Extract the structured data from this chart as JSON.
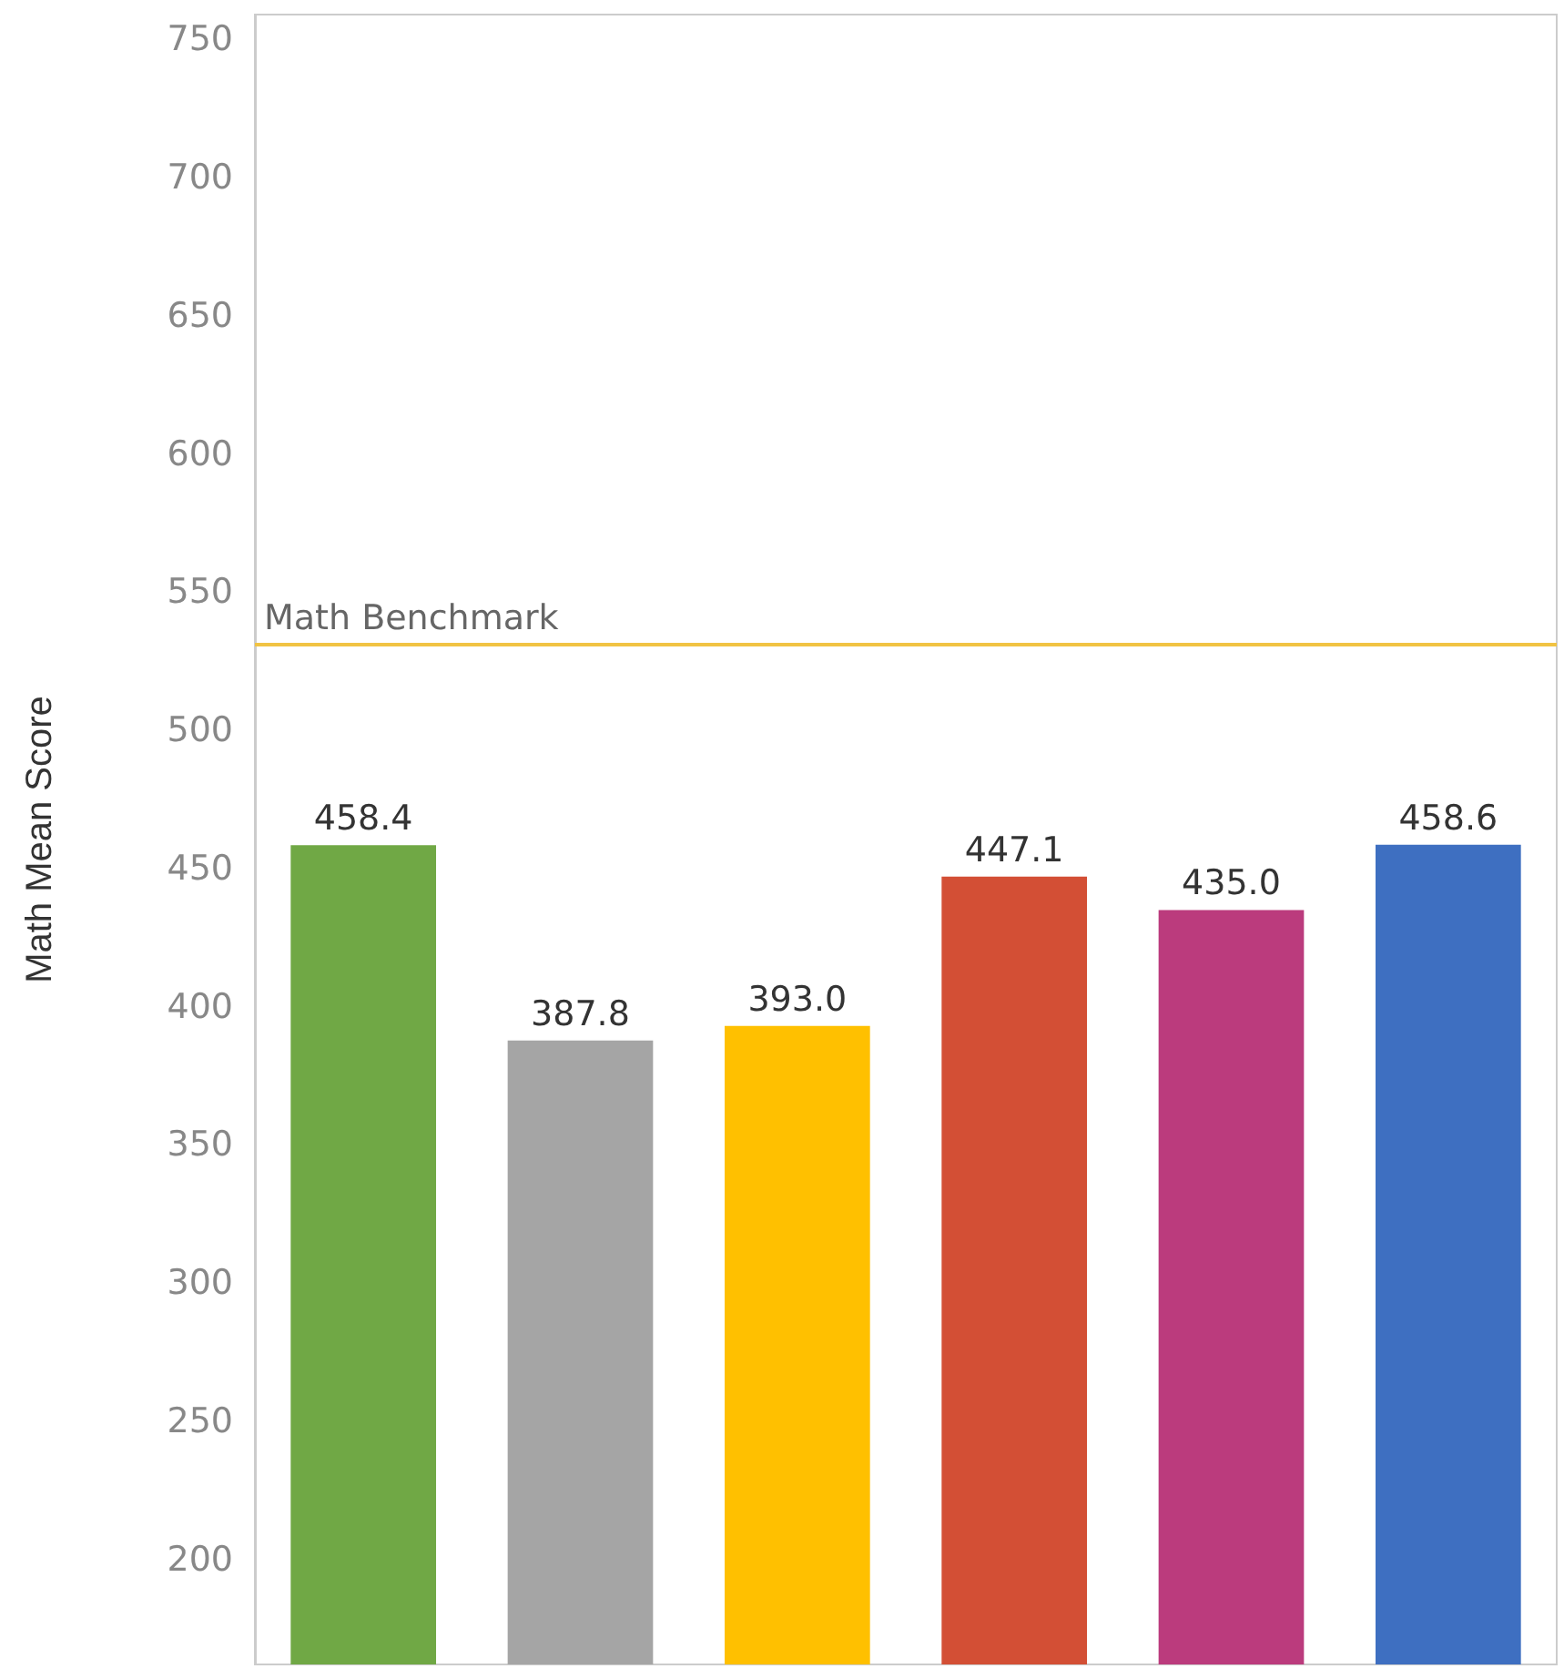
{
  "chart_data": {
    "type": "bar",
    "ylabel": "Math Mean Score",
    "categories": [
      null,
      null,
      null,
      null,
      null,
      null
    ],
    "values": [
      458.4,
      387.8,
      393.0,
      447.1,
      435.0,
      458.6
    ],
    "value_labels": [
      "458.4",
      "387.8",
      "393.0",
      "447.1",
      "435.0",
      "458.6"
    ],
    "colors": [
      "#70a845",
      "#a5a5a5",
      "#ffc000",
      "#d34f35",
      "#bb3b7d",
      "#3e6fc1"
    ],
    "ylim": [
      162,
      759
    ],
    "yticks": [
      200,
      250,
      300,
      350,
      400,
      450,
      500,
      550,
      600,
      650,
      700,
      750
    ],
    "ref_lines": [
      {
        "axis": "y",
        "value": 531,
        "label": "Math Benchmark",
        "color": "#f1c343"
      }
    ],
    "grid": false
  }
}
